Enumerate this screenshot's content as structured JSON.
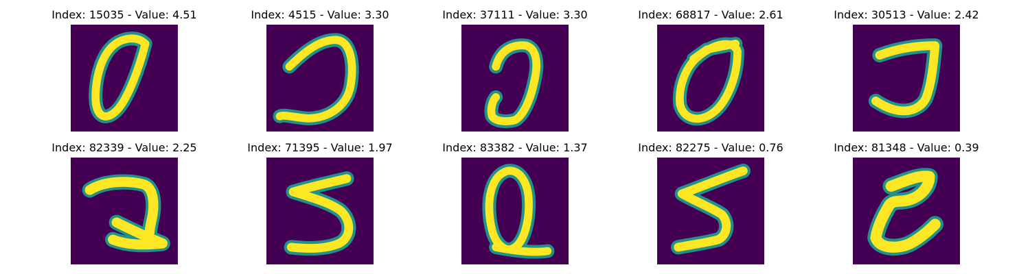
{
  "figure": {
    "colormap": "viridis",
    "background_color": "#440154",
    "ink_color": "#fde725",
    "panels": [
      {
        "title": "Index: 15035 - Value: 4.51",
        "glyph": "0"
      },
      {
        "title": "Index: 4515 - Value: 3.30",
        "glyph": "J"
      },
      {
        "title": "Index: 37111 - Value: 3.30",
        "glyph": "J"
      },
      {
        "title": "Index: 68817 - Value: 2.61",
        "glyph": "0"
      },
      {
        "title": "Index: 30513 - Value: 2.42",
        "glyph": "J"
      },
      {
        "title": "Index: 82339 - Value: 2.25",
        "glyph": "2"
      },
      {
        "title": "Index: 71395 - Value: 1.97",
        "glyph": "5"
      },
      {
        "title": "Index: 83382 - Value: 1.37",
        "glyph": "Q"
      },
      {
        "title": "Index: 82275 - Value: 0.76",
        "glyph": "5"
      },
      {
        "title": "Index: 81348 - Value: 0.39",
        "glyph": "Z"
      }
    ]
  }
}
